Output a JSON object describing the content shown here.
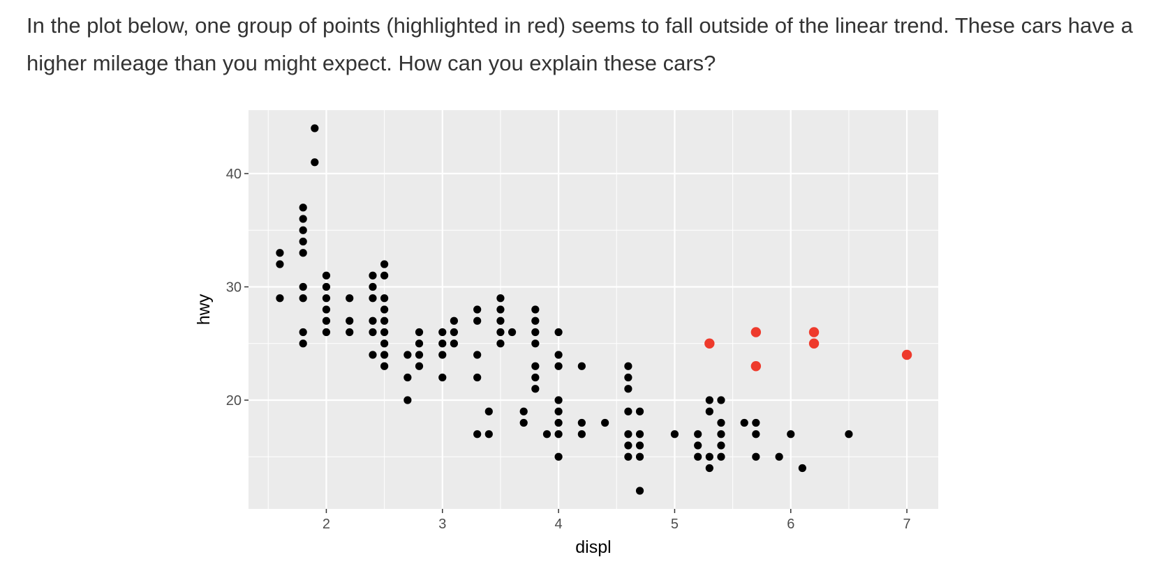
{
  "intro_text": "In the plot below, one group of points (highlighted in red) seems to fall outside of the linear trend. These cars have a higher mileage than you might expect. How can you explain these cars?",
  "colors": {
    "panel_background": "#ebebeb",
    "grid": "#ffffff",
    "point": "#000000",
    "highlight": "#ee3a2c",
    "tick_label": "#4d4d4d",
    "text": "#333333"
  },
  "chart_data": {
    "type": "scatter",
    "xlabel": "displ",
    "ylabel": "hwy",
    "xlim": [
      1.33,
      7.27
    ],
    "ylim": [
      10.4,
      45.6
    ],
    "x_ticks": [
      2,
      3,
      4,
      5,
      6,
      7
    ],
    "x_minor_ticks": [
      1.5,
      2.5,
      3.5,
      4.5,
      5.5,
      6.5
    ],
    "y_ticks": [
      20,
      30,
      40
    ],
    "y_minor_ticks": [
      15,
      25,
      35
    ],
    "grid": true,
    "series": [
      {
        "highlight": false,
        "points": [
          [
            1.6,
            33
          ],
          [
            1.6,
            32
          ],
          [
            1.6,
            29
          ],
          [
            1.8,
            37
          ],
          [
            1.8,
            36
          ],
          [
            1.8,
            35
          ],
          [
            1.8,
            34
          ],
          [
            1.8,
            33
          ],
          [
            1.8,
            30
          ],
          [
            1.8,
            29
          ],
          [
            1.8,
            26
          ],
          [
            1.8,
            25
          ],
          [
            1.9,
            44
          ],
          [
            1.9,
            41
          ],
          [
            2.0,
            31
          ],
          [
            2.0,
            30
          ],
          [
            2.0,
            29
          ],
          [
            2.0,
            28
          ],
          [
            2.0,
            27
          ],
          [
            2.0,
            26
          ],
          [
            2.2,
            29
          ],
          [
            2.2,
            27
          ],
          [
            2.2,
            26
          ],
          [
            2.4,
            31
          ],
          [
            2.4,
            30
          ],
          [
            2.4,
            29
          ],
          [
            2.4,
            27
          ],
          [
            2.4,
            26
          ],
          [
            2.4,
            24
          ],
          [
            2.5,
            32
          ],
          [
            2.5,
            31
          ],
          [
            2.5,
            29
          ],
          [
            2.5,
            28
          ],
          [
            2.5,
            27
          ],
          [
            2.5,
            26
          ],
          [
            2.5,
            25
          ],
          [
            2.5,
            24
          ],
          [
            2.5,
            23
          ],
          [
            2.7,
            24
          ],
          [
            2.7,
            22
          ],
          [
            2.7,
            20
          ],
          [
            2.8,
            26
          ],
          [
            2.8,
            25
          ],
          [
            2.8,
            24
          ],
          [
            2.8,
            23
          ],
          [
            3.0,
            26
          ],
          [
            3.0,
            25
          ],
          [
            3.0,
            24
          ],
          [
            3.0,
            22
          ],
          [
            3.1,
            27
          ],
          [
            3.1,
            26
          ],
          [
            3.1,
            25
          ],
          [
            3.3,
            28
          ],
          [
            3.3,
            27
          ],
          [
            3.3,
            24
          ],
          [
            3.3,
            22
          ],
          [
            3.3,
            17
          ],
          [
            3.4,
            19
          ],
          [
            3.4,
            17
          ],
          [
            3.5,
            29
          ],
          [
            3.5,
            28
          ],
          [
            3.5,
            27
          ],
          [
            3.5,
            26
          ],
          [
            3.5,
            25
          ],
          [
            3.6,
            26
          ],
          [
            3.7,
            19
          ],
          [
            3.7,
            18
          ],
          [
            3.8,
            28
          ],
          [
            3.8,
            27
          ],
          [
            3.8,
            26
          ],
          [
            3.8,
            25
          ],
          [
            3.8,
            23
          ],
          [
            3.8,
            22
          ],
          [
            3.8,
            21
          ],
          [
            3.9,
            17
          ],
          [
            4.0,
            26
          ],
          [
            4.0,
            24
          ],
          [
            4.0,
            23
          ],
          [
            4.0,
            20
          ],
          [
            4.0,
            19
          ],
          [
            4.0,
            18
          ],
          [
            4.0,
            17
          ],
          [
            4.0,
            15
          ],
          [
            4.2,
            23
          ],
          [
            4.2,
            18
          ],
          [
            4.2,
            17
          ],
          [
            4.4,
            18
          ],
          [
            4.6,
            23
          ],
          [
            4.6,
            22
          ],
          [
            4.6,
            21
          ],
          [
            4.6,
            19
          ],
          [
            4.6,
            17
          ],
          [
            4.6,
            16
          ],
          [
            4.6,
            15
          ],
          [
            4.7,
            19
          ],
          [
            4.7,
            17
          ],
          [
            4.7,
            16
          ],
          [
            4.7,
            15
          ],
          [
            4.7,
            12
          ],
          [
            5.0,
            17
          ],
          [
            5.2,
            17
          ],
          [
            5.2,
            16
          ],
          [
            5.2,
            15
          ],
          [
            5.3,
            20
          ],
          [
            5.3,
            19
          ],
          [
            5.3,
            15
          ],
          [
            5.3,
            14
          ],
          [
            5.4,
            20
          ],
          [
            5.4,
            18
          ],
          [
            5.4,
            17
          ],
          [
            5.4,
            16
          ],
          [
            5.4,
            15
          ],
          [
            5.6,
            18
          ],
          [
            5.7,
            18
          ],
          [
            5.7,
            17
          ],
          [
            5.7,
            15
          ],
          [
            5.9,
            15
          ],
          [
            6.0,
            17
          ],
          [
            6.1,
            14
          ],
          [
            6.5,
            17
          ]
        ]
      },
      {
        "highlight": true,
        "points": [
          [
            5.3,
            25
          ],
          [
            5.7,
            26
          ],
          [
            5.7,
            23
          ],
          [
            6.2,
            26
          ],
          [
            6.2,
            25
          ],
          [
            7.0,
            24
          ]
        ]
      }
    ]
  }
}
